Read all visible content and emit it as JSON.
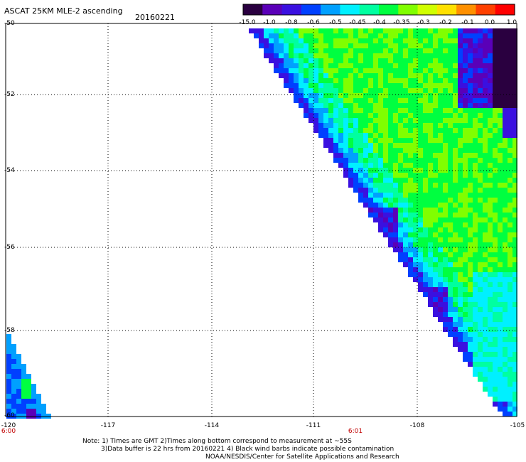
{
  "header": {
    "title": "ASCAT 25KM MLE-2 ascending",
    "date": "20160221"
  },
  "colorbar": {
    "labels": [
      "-15.0",
      "-1.0",
      "-0.8",
      "-0.6",
      "-0.5",
      "-0.45",
      "-0.4",
      "-0.35",
      "-0.3",
      "-0.2",
      "-0.1",
      "0.0",
      "1.0"
    ],
    "colors": [
      "#2a0040",
      "#5a00b8",
      "#3a10e0",
      "#0040ff",
      "#00a0ff",
      "#00f0ff",
      "#00ffa0",
      "#00ff40",
      "#80ff00",
      "#d0ff00",
      "#ffe000",
      "#ff9000",
      "#ff4000",
      "#ff0000"
    ]
  },
  "map": {
    "y_axis_labels": [
      "-50",
      "-52",
      "-54",
      "-56",
      "-58",
      "-60"
    ],
    "x_axis_labels": [
      "-120",
      "-117",
      "-114",
      "-111",
      "-108",
      "-105"
    ],
    "time_labels": [
      "6:00",
      "6:01"
    ]
  },
  "notes": {
    "line1": "Note: 1) Times are GMT 2)Times along bottom correspond to measurement at ~55S",
    "line2": "3)Data buffer is 22 hrs from 20160221 4) Black wind barbs indicate possible contamination",
    "line3": "NOAA/NESDIS/Center for Satellite Applications and Research"
  }
}
